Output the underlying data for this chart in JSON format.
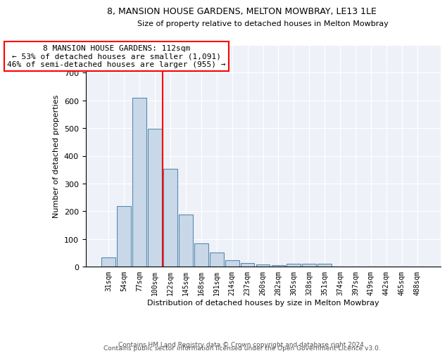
{
  "title1": "8, MANSION HOUSE GARDENS, MELTON MOWBRAY, LE13 1LE",
  "title2": "Size of property relative to detached houses in Melton Mowbray",
  "xlabel": "Distribution of detached houses by size in Melton Mowbray",
  "ylabel": "Number of detached properties",
  "categories": [
    "31sqm",
    "54sqm",
    "77sqm",
    "100sqm",
    "122sqm",
    "145sqm",
    "168sqm",
    "191sqm",
    "214sqm",
    "237sqm",
    "260sqm",
    "282sqm",
    "305sqm",
    "328sqm",
    "351sqm",
    "374sqm",
    "397sqm",
    "419sqm",
    "442sqm",
    "465sqm",
    "488sqm"
  ],
  "values": [
    32,
    218,
    610,
    497,
    352,
    188,
    83,
    52,
    22,
    13,
    8,
    5,
    9,
    9,
    9,
    0,
    0,
    0,
    0,
    0,
    0
  ],
  "bar_color": "#c8d8e8",
  "bar_edge_color": "#5a8ab0",
  "annotation_text": "8 MANSION HOUSE GARDENS: 112sqm\n← 53% of detached houses are smaller (1,091)\n46% of semi-detached houses are larger (955) →",
  "annotation_box_color": "white",
  "annotation_box_edge_color": "red",
  "red_line_color": "red",
  "footer1": "Contains HM Land Registry data © Crown copyright and database right 2024.",
  "footer2": "Contains public sector information licensed under the Open Government Licence v3.0.",
  "ylim": [
    0,
    800
  ],
  "yticks": [
    0,
    100,
    200,
    300,
    400,
    500,
    600,
    700,
    800
  ],
  "bg_color": "#eef2f8",
  "grid_color": "white",
  "title1_fontsize": 9,
  "title2_fontsize": 8,
  "xlabel_fontsize": 8,
  "ylabel_fontsize": 8,
  "tick_fontsize": 7,
  "footer_fontsize": 6.5
}
